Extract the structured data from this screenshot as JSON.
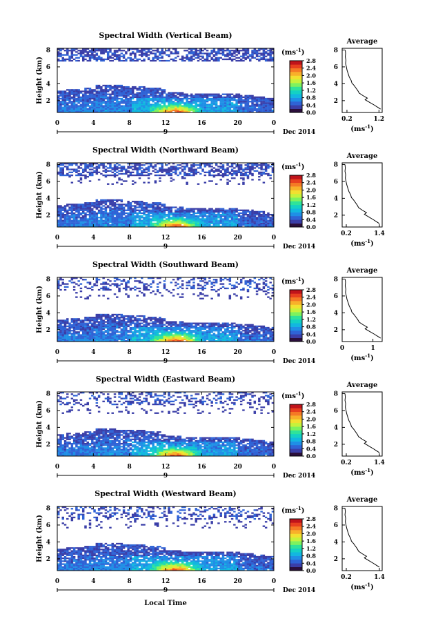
{
  "chart_data": {
    "type": "heatmap",
    "common": {
      "x_ticks": [
        "0",
        "4",
        "8",
        "12",
        "16",
        "20",
        "0"
      ],
      "x_ticks_sub": "Local Time",
      "y_ticks": [
        "2",
        "4",
        "6",
        "8"
      ],
      "ylabel": "Height (km)",
      "date_day": "9",
      "date_month": "Dec 2014",
      "colorbar_unit": "(ms",
      "colorbar_unit_sup": "-1",
      "colorbar_unit_close": ")",
      "colorbar_ticks": [
        "0.0",
        "0.4",
        "0.8",
        "1.2",
        "1.6",
        "2.0",
        "2.4",
        "2.8"
      ],
      "colormap": [
        "#2b0f3c",
        "#3a3ea8",
        "#2f63d6",
        "#1f8fe6",
        "#12b7e0",
        "#14d1c4",
        "#2fe39a",
        "#7ef25e",
        "#c6f23c",
        "#f2e030",
        "#f8b02a",
        "#f57a25",
        "#e8401f",
        "#c0141b"
      ],
      "avg_title": "Average",
      "avg_unit": "(ms",
      "avg_unit_sup": "-1",
      "avg_unit_close": ")",
      "avg_y_ticks": [
        "2",
        "4",
        "6",
        "8"
      ]
    },
    "panels": [
      {
        "title": "Spectral Width (Vertical Beam)",
        "avg_x_ticks": [
          "0.2",
          "1.2"
        ],
        "avg_xlim": [
          0.05,
          1.3
        ],
        "avg_max": 1.2
      },
      {
        "title": "Spectral Width (Northward Beam)",
        "avg_x_ticks": [
          "0.2",
          "1.4"
        ],
        "avg_xlim": [
          0.05,
          1.5
        ],
        "avg_max": 1.35
      },
      {
        "title": "Spectral Width (Southward Beam)",
        "avg_x_ticks": [
          "0",
          "1"
        ],
        "avg_xlim": [
          0,
          1.3
        ],
        "avg_max": 1.2
      },
      {
        "title": "Spectral Width (Eastward Beam)",
        "avg_x_ticks": [
          "0.2",
          "1.4"
        ],
        "avg_xlim": [
          0.05,
          1.5
        ],
        "avg_max": 1.35
      },
      {
        "title": "Spectral Width (Westward Beam)",
        "avg_x_ticks": [
          "0.2",
          "1.4"
        ],
        "avg_xlim": [
          0.05,
          1.5
        ],
        "avg_max": 1.35
      }
    ],
    "avg_profile": {
      "height_km": [
        1.0,
        1.2,
        1.5,
        1.8,
        2.1,
        2.3,
        2.6,
        2.9,
        3.2,
        3.5,
        3.8,
        4.1,
        4.4,
        4.8,
        5.2,
        5.6,
        6.0,
        6.4,
        6.8,
        7.2,
        7.6,
        8.0
      ],
      "fraction_of_max": [
        1.0,
        0.93,
        0.82,
        0.7,
        0.58,
        0.64,
        0.52,
        0.42,
        0.38,
        0.33,
        0.28,
        0.22,
        0.2,
        0.15,
        0.12,
        0.09,
        0.07,
        0.05,
        0.06,
        0.04,
        0.05,
        0.04
      ]
    }
  }
}
